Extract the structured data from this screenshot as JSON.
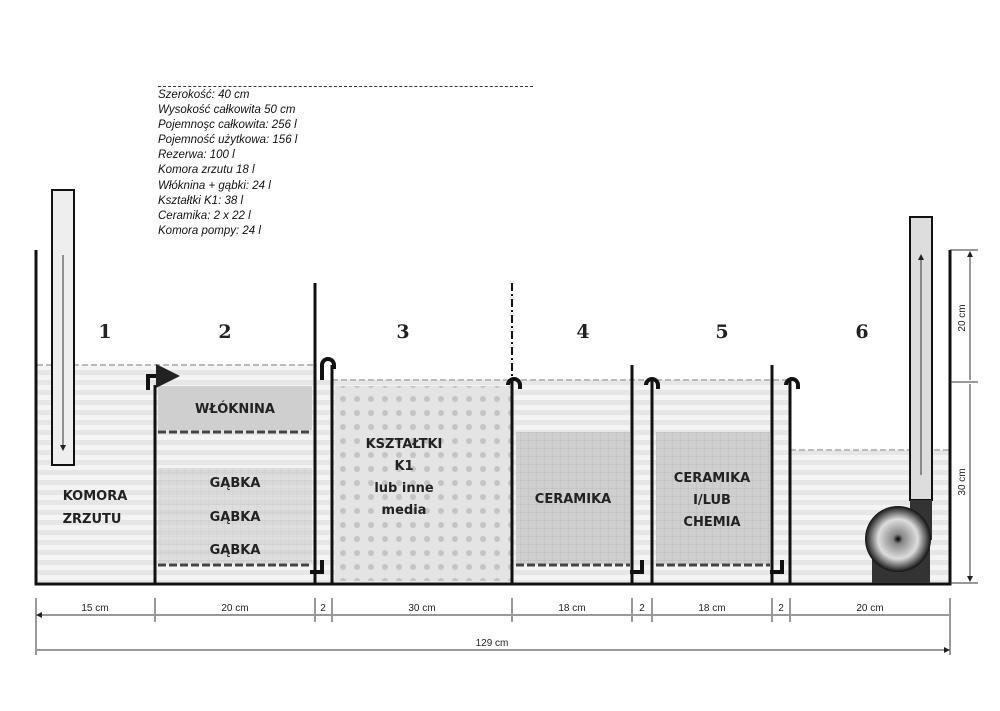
{
  "specs": [
    "Szerokość:  40 cm",
    "Wysokość całkowita 50 cm",
    "Pojemnoşc całkowita: 256 l",
    "Pojemność użytkowa: 156 l",
    "Rezerwa: 100 l",
    "Komora zrzutu 18 l",
    "Włóknina + gąbki: 24 l",
    "Kształtki K1: 38 l",
    "Ceramika: 2 x 22 l",
    "Komora pompy: 24 l"
  ],
  "chambers": [
    "1",
    "2",
    "3",
    "4",
    "5",
    "6"
  ],
  "labels": {
    "komora": "KOMORA",
    "zrzutu": "ZRZUTU",
    "wloknina": "WŁÓKNINA",
    "gabka1": "GĄBKA",
    "gabka2": "GĄBKA",
    "gabka3": "GĄBKA",
    "k1a": "KSZTAŁTKI",
    "k1b": "K1",
    "k1c": "lub inne",
    "k1d": "media",
    "cer": "CERAMIKA",
    "cer2a": "CERAMIKA",
    "cer2b": "I/LUB",
    "cer2c": "CHEMIA"
  },
  "dims": {
    "d15": "15 cm",
    "d20a": "20 cm",
    "d2a": "2",
    "d30": "30 cm",
    "d18a": "18 cm",
    "d2b": "2",
    "d18b": "18 cm",
    "d2c": "2",
    "d20b": "20 cm",
    "total": "129 cm",
    "h20": "20 cm",
    "h30": "30 cm"
  },
  "colors": {
    "water": "#dcdcdc",
    "wall": "#111111",
    "media": "#c8c8c8"
  }
}
